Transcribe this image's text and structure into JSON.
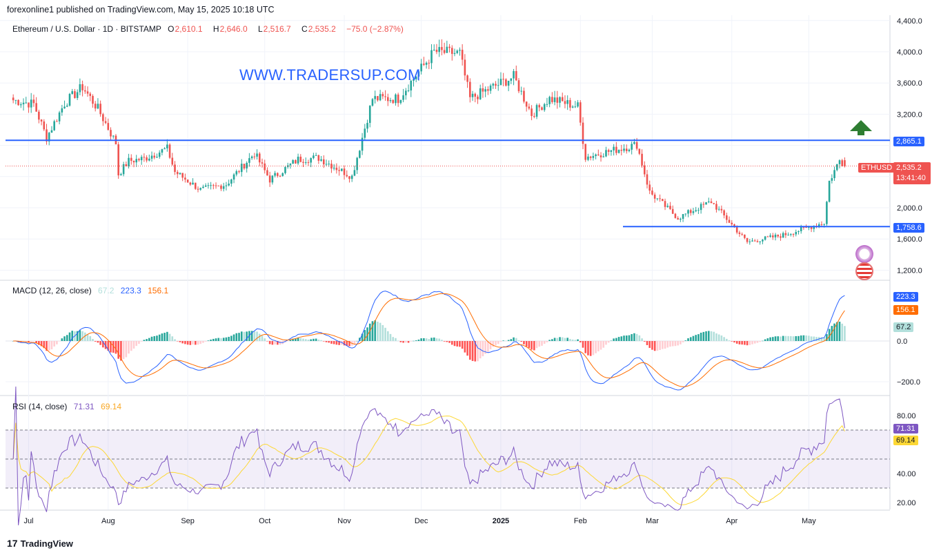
{
  "header": {
    "published_line": "forexonline1 published on TradingView.com, May 15, 2025 10:18 UTC"
  },
  "main_legend": {
    "symbol": "Ethereum / U.S. Dollar · 1D · BITSTAMP",
    "o_label": "O",
    "o_value": "2,610.1",
    "h_label": "H",
    "h_value": "2,646.0",
    "l_label": "L",
    "l_value": "2,516.7",
    "c_label": "C",
    "c_value": "2,535.2",
    "change": "−75.0 (−2.87%)"
  },
  "watermark": "WWW.TRADERSUP.COM",
  "price_axis": {
    "ticks": [
      "4,400.0",
      "4,000.0",
      "3,600.0",
      "3,200.0",
      "2,000.0",
      "1,600.0",
      "1,200.0"
    ],
    "resistance_label": "2,865.1",
    "support_label": "1,758.6",
    "last_price_label": "2,535.2",
    "countdown": "13:41:40",
    "symbol_tag": "ETHUSD"
  },
  "macd": {
    "title": "MACD (12, 26, close)",
    "hist_value": "67.2",
    "macd_value": "223.3",
    "signal_value": "156.1",
    "ticks": [
      "0.0",
      "−200.0"
    ]
  },
  "rsi": {
    "title": "RSI (14, close)",
    "rsi_value": "71.31",
    "ma_value": "69.14",
    "ticks": [
      "80.00",
      "40.00",
      "20.00"
    ]
  },
  "time_axis": [
    "Jul",
    "Aug",
    "Sep",
    "Oct",
    "Nov",
    "Dec",
    "2025",
    "Feb",
    "Mar",
    "Apr",
    "May"
  ],
  "footer": {
    "brand": "TradingView"
  },
  "colors": {
    "up": "#26a69a",
    "down": "#ef5350",
    "level_line": "#2962ff",
    "macd_line": "#2962ff",
    "signal_line": "#ff6d00",
    "rsi_line": "#7e57c2",
    "rsi_ma": "#fdd835",
    "arrow": "#2e7d32"
  },
  "chart_data": {
    "type": "candlestick",
    "title": "Ethereum / U.S. Dollar · 1D · BITSTAMP",
    "price_keypoints": [
      {
        "date": "2024-06-25",
        "close": 3380
      },
      {
        "date": "2024-07-03",
        "close": 3330
      },
      {
        "date": "2024-07-08",
        "close": 2900
      },
      {
        "date": "2024-07-15",
        "close": 3340
      },
      {
        "date": "2024-07-22",
        "close": 3550
      },
      {
        "date": "2024-07-28",
        "close": 3270
      },
      {
        "date": "2024-08-04",
        "close": 2830
      },
      {
        "date": "2024-08-05",
        "close": 2430
      },
      {
        "date": "2024-08-09",
        "close": 2600
      },
      {
        "date": "2024-08-15",
        "close": 2630
      },
      {
        "date": "2024-08-24",
        "close": 2760
      },
      {
        "date": "2024-08-27",
        "close": 2460
      },
      {
        "date": "2024-09-06",
        "close": 2230
      },
      {
        "date": "2024-09-16",
        "close": 2300
      },
      {
        "date": "2024-09-27",
        "close": 2700
      },
      {
        "date": "2024-10-03",
        "close": 2360
      },
      {
        "date": "2024-10-14",
        "close": 2620
      },
      {
        "date": "2024-10-22",
        "close": 2640
      },
      {
        "date": "2024-11-04",
        "close": 2400
      },
      {
        "date": "2024-11-12",
        "close": 3400
      },
      {
        "date": "2024-11-22",
        "close": 3400
      },
      {
        "date": "2024-12-06",
        "close": 4000
      },
      {
        "date": "2024-12-16",
        "close": 3980
      },
      {
        "date": "2024-12-20",
        "close": 3400
      },
      {
        "date": "2025-01-06",
        "close": 3680
      },
      {
        "date": "2025-01-13",
        "close": 3200
      },
      {
        "date": "2025-01-20",
        "close": 3400
      },
      {
        "date": "2025-01-31",
        "close": 3300
      },
      {
        "date": "2025-02-03",
        "close": 2650
      },
      {
        "date": "2025-02-23",
        "close": 2810
      },
      {
        "date": "2025-02-28",
        "close": 2200
      },
      {
        "date": "2025-03-11",
        "close": 1870
      },
      {
        "date": "2025-03-24",
        "close": 2080
      },
      {
        "date": "2025-04-07",
        "close": 1560
      },
      {
        "date": "2025-04-21",
        "close": 1650
      },
      {
        "date": "2025-05-07",
        "close": 1810
      },
      {
        "date": "2025-05-09",
        "close": 2340
      },
      {
        "date": "2025-05-13",
        "close": 2610
      },
      {
        "date": "2025-05-15",
        "close": 2535.2
      }
    ],
    "levels": [
      {
        "label": "2,865.1",
        "value": 2865.1
      },
      {
        "label": "1,758.6",
        "value": 1758.6
      }
    ],
    "last": {
      "open": 2610.1,
      "high": 2646.0,
      "low": 2516.7,
      "close": 2535.2
    },
    "y_range": [
      1100,
      4450
    ],
    "macd_last": {
      "macd": 223.3,
      "signal": 156.1,
      "hist": 67.2
    },
    "rsi_last": {
      "rsi": 71.31,
      "ma": 69.14
    },
    "rsi_band": [
      30,
      70
    ]
  }
}
